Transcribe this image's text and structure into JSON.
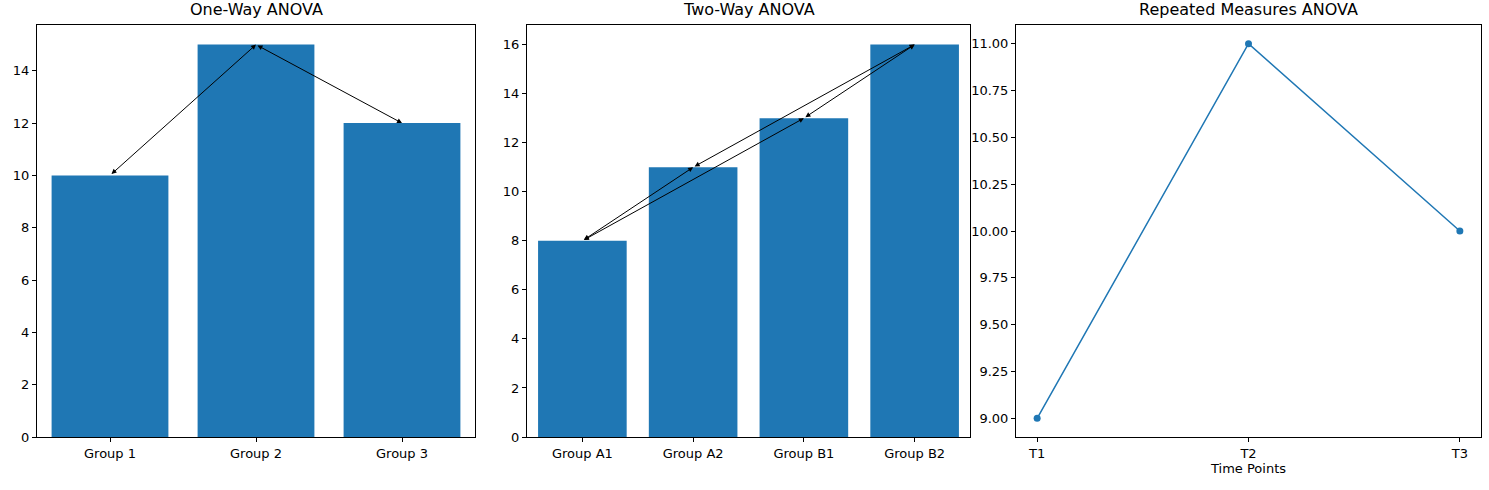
{
  "chart_data": [
    {
      "type": "bar",
      "title": "One-Way ANOVA",
      "categories": [
        "Group 1",
        "Group 2",
        "Group 3"
      ],
      "values": [
        10,
        15,
        12
      ],
      "color": "#1f77b4",
      "ylim": [
        0,
        15.75
      ],
      "yticks": [
        0,
        2,
        4,
        6,
        8,
        10,
        12,
        14
      ],
      "grid": false
    },
    {
      "type": "bar",
      "title": "Two-Way ANOVA",
      "categories": [
        "Group A1",
        "Group A2",
        "Group B1",
        "Group B2"
      ],
      "values": [
        8,
        11,
        13,
        16
      ],
      "color": "#1f77b4",
      "ylim": [
        0,
        16.8
      ],
      "yticks": [
        0,
        2,
        4,
        6,
        8,
        10,
        12,
        14,
        16
      ],
      "grid": false
    },
    {
      "type": "line",
      "title": "Repeated Measures ANOVA",
      "x_label": "Time Points",
      "categories": [
        "T1",
        "T2",
        "T3"
      ],
      "values": [
        9,
        11,
        10
      ],
      "color": "#1f77b4",
      "marker": "circle",
      "ylim": [
        8.9,
        11.1
      ],
      "yticks": [
        {
          "value": 9,
          "label": "9.00"
        },
        {
          "value": 9.25,
          "label": "9.25"
        },
        {
          "value": 9.5,
          "label": "9.50"
        },
        {
          "value": 9.75,
          "label": "9.75"
        },
        {
          "value": 10,
          "label": "10.00"
        },
        {
          "value": 10.25,
          "label": "10.25"
        },
        {
          "value": 10.5,
          "label": "10.50"
        },
        {
          "value": 10.75,
          "label": "10.75"
        },
        {
          "value": 11,
          "label": "11.00"
        }
      ],
      "grid": false
    }
  ]
}
